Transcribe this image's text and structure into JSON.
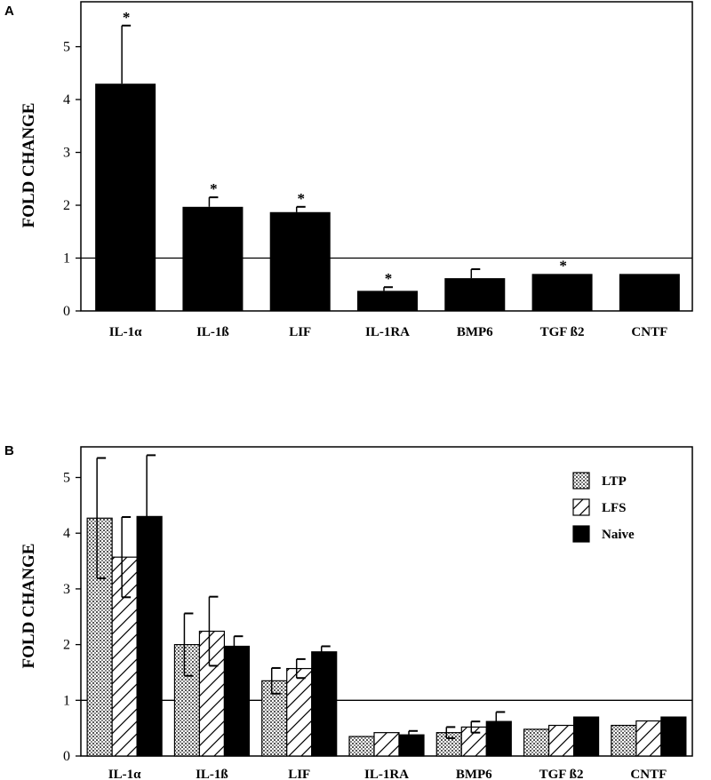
{
  "panels": [
    {
      "letter": "A",
      "ylabel": "FOLD CHANGE"
    },
    {
      "letter": "B",
      "ylabel": "FOLD CHANGE"
    }
  ],
  "chart_data": [
    {
      "type": "bar",
      "panel": "A",
      "ylabel": "FOLD CHANGE",
      "xlabel": "",
      "ylim": [
        0,
        5.85
      ],
      "yticks": [
        0,
        1,
        2,
        3,
        4,
        5
      ],
      "reference_line": 1,
      "categories": [
        "IL-1α",
        "IL-1ß",
        "LIF",
        "IL-1RA",
        "BMP6",
        "TGF ß2",
        "CNTF"
      ],
      "values": [
        4.3,
        1.97,
        1.87,
        0.38,
        0.62,
        0.7,
        0.7
      ],
      "error": [
        1.1,
        0.18,
        0.1,
        0.07,
        0.17,
        0.0,
        0.0
      ],
      "significance": [
        "*",
        "*",
        "*",
        "*",
        "",
        "*",
        ""
      ],
      "color": "#000000"
    },
    {
      "type": "bar",
      "panel": "B",
      "ylabel": "FOLD CHANGE",
      "xlabel": "",
      "ylim": [
        0,
        5.55
      ],
      "yticks": [
        0,
        1,
        2,
        3,
        4,
        5
      ],
      "reference_line": 1,
      "legend_position": "top-right",
      "categories": [
        "IL-1α",
        "IL-1ß",
        "LIF",
        "IL-1RA",
        "BMP6",
        "TGF ß2",
        "CNTF"
      ],
      "series": [
        {
          "name": "LTP",
          "pattern": "dotted",
          "values": [
            4.27,
            2.0,
            1.35,
            0.35,
            0.42,
            0.48,
            0.55
          ],
          "error": [
            1.08,
            0.56,
            0.23,
            0.0,
            0.1,
            0.0,
            0.0
          ]
        },
        {
          "name": "LFS",
          "pattern": "hatched",
          "values": [
            3.57,
            2.24,
            1.57,
            0.42,
            0.52,
            0.55,
            0.63
          ],
          "error": [
            0.72,
            0.62,
            0.17,
            0.0,
            0.1,
            0.0,
            0.0
          ]
        },
        {
          "name": "Naive",
          "pattern": "solid",
          "values": [
            4.3,
            1.97,
            1.87,
            0.38,
            0.62,
            0.7,
            0.7
          ],
          "error": [
            1.1,
            0.18,
            0.1,
            0.07,
            0.17,
            0.0,
            0.0
          ]
        }
      ]
    }
  ]
}
